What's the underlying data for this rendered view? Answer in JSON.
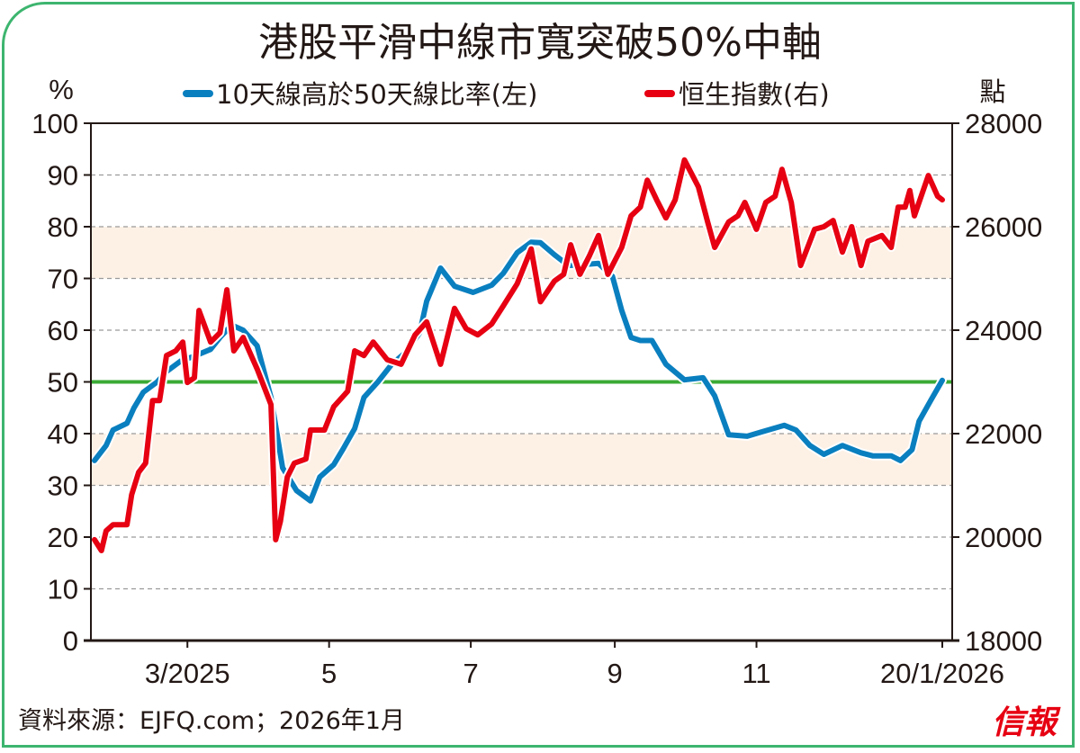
{
  "chart_data": {
    "type": "line",
    "title": "港股平滑中線市寬突破50%中軸",
    "left_axis": {
      "label": "%",
      "ylim": [
        0,
        100
      ],
      "ticks": [
        0,
        10,
        20,
        30,
        40,
        50,
        60,
        70,
        80,
        90,
        100
      ]
    },
    "right_axis": {
      "label": "點",
      "ylim": [
        18000,
        28000
      ],
      "ticks": [
        18000,
        20000,
        22000,
        24000,
        26000,
        28000
      ]
    },
    "x_axis": {
      "xlim": [
        "2025-01-20",
        "2026-01-20"
      ],
      "ticks": [
        {
          "date": "2025-03-01",
          "label": "3/2025"
        },
        {
          "date": "2025-05-01",
          "label": "5"
        },
        {
          "date": "2025-07-01",
          "label": "7"
        },
        {
          "date": "2025-09-01",
          "label": "9"
        },
        {
          "date": "2025-11-01",
          "label": "11"
        },
        {
          "date": "2026-01-20",
          "label": "20/1/2026"
        }
      ]
    },
    "grid": true,
    "bands": [
      {
        "from": 30,
        "to": 40,
        "color": "#fdf1e6"
      },
      {
        "from": 70,
        "to": 80,
        "color": "#fdf1e6"
      }
    ],
    "reference_line": {
      "value": 50,
      "color": "#3aaa35"
    },
    "legend_placement": "top",
    "series": [
      {
        "name": "10天線高於50天線比率(左)",
        "axis": "left",
        "color": "#0a7fbf",
        "points": [
          [
            "2025-01-20",
            34.8
          ],
          [
            "2025-01-25",
            37.7
          ],
          [
            "2025-01-28",
            40.7
          ],
          [
            "2025-02-03",
            42
          ],
          [
            "2025-02-06",
            45
          ],
          [
            "2025-02-10",
            48
          ],
          [
            "2025-02-16",
            50
          ],
          [
            "2025-02-20",
            52
          ],
          [
            "2025-02-26",
            54
          ],
          [
            "2025-03-04",
            55
          ],
          [
            "2025-03-11",
            56.3
          ],
          [
            "2025-03-15",
            58.6
          ],
          [
            "2025-03-20",
            61
          ],
          [
            "2025-03-25",
            60
          ],
          [
            "2025-03-31",
            57
          ],
          [
            "2025-04-06",
            47
          ],
          [
            "2025-04-11",
            33.4
          ],
          [
            "2025-04-17",
            29
          ],
          [
            "2025-04-23",
            27
          ],
          [
            "2025-04-27",
            31.6
          ],
          [
            "2025-05-03",
            34
          ],
          [
            "2025-05-07",
            37
          ],
          [
            "2025-05-12",
            41
          ],
          [
            "2025-05-16",
            47
          ],
          [
            "2025-05-22",
            50
          ],
          [
            "2025-05-28",
            53.4
          ],
          [
            "2025-06-03",
            55.7
          ],
          [
            "2025-06-09",
            59.5
          ],
          [
            "2025-06-12",
            65.6
          ],
          [
            "2025-06-18",
            72
          ],
          [
            "2025-06-24",
            68.5
          ],
          [
            "2025-07-02",
            67.3
          ],
          [
            "2025-07-10",
            68.7
          ],
          [
            "2025-07-15",
            71
          ],
          [
            "2025-07-21",
            75
          ],
          [
            "2025-07-27",
            77
          ],
          [
            "2025-07-31",
            76.9
          ],
          [
            "2025-08-06",
            74.6
          ],
          [
            "2025-08-12",
            72.5
          ],
          [
            "2025-08-19",
            72.7
          ],
          [
            "2025-08-25",
            72.9
          ],
          [
            "2025-08-31",
            70.4
          ],
          [
            "2025-09-04",
            63.8
          ],
          [
            "2025-09-08",
            58.6
          ],
          [
            "2025-09-12",
            58
          ],
          [
            "2025-09-17",
            58
          ],
          [
            "2025-09-23",
            53.4
          ],
          [
            "2025-10-01",
            50.4
          ],
          [
            "2025-10-09",
            50.8
          ],
          [
            "2025-10-14",
            47.3
          ],
          [
            "2025-10-20",
            39.8
          ],
          [
            "2025-10-28",
            39.5
          ],
          [
            "2025-11-03",
            40.3
          ],
          [
            "2025-11-13",
            41.6
          ],
          [
            "2025-11-18",
            40.7
          ],
          [
            "2025-11-24",
            37.7
          ],
          [
            "2025-11-30",
            36
          ],
          [
            "2025-12-08",
            37.7
          ],
          [
            "2025-12-16",
            36.3
          ],
          [
            "2025-12-21",
            35.7
          ],
          [
            "2025-12-29",
            35.7
          ],
          [
            "2026-01-02",
            34.8
          ],
          [
            "2026-01-07",
            36.9
          ],
          [
            "2026-01-10",
            42.4
          ],
          [
            "2026-01-15",
            46.4
          ],
          [
            "2026-01-20",
            50.3
          ]
        ]
      },
      {
        "name": "恒生指數(右)",
        "axis": "right",
        "color": "#e60012",
        "points": [
          [
            "2025-01-20",
            19950
          ],
          [
            "2025-01-23",
            19740
          ],
          [
            "2025-01-25",
            20120
          ],
          [
            "2025-01-28",
            20240
          ],
          [
            "2025-02-03",
            20240
          ],
          [
            "2025-02-05",
            20820
          ],
          [
            "2025-02-08",
            21250
          ],
          [
            "2025-02-11",
            21430
          ],
          [
            "2025-02-14",
            22640
          ],
          [
            "2025-02-17",
            22640
          ],
          [
            "2025-02-20",
            23510
          ],
          [
            "2025-02-24",
            23600
          ],
          [
            "2025-02-27",
            23770
          ],
          [
            "2025-03-01",
            22990
          ],
          [
            "2025-03-04",
            23080
          ],
          [
            "2025-03-06",
            24380
          ],
          [
            "2025-03-11",
            23770
          ],
          [
            "2025-03-15",
            23950
          ],
          [
            "2025-03-18",
            24780
          ],
          [
            "2025-03-21",
            23600
          ],
          [
            "2025-03-25",
            23860
          ],
          [
            "2025-03-31",
            23250
          ],
          [
            "2025-04-06",
            22560
          ],
          [
            "2025-04-08",
            19950
          ],
          [
            "2025-04-10",
            20300
          ],
          [
            "2025-04-13",
            21160
          ],
          [
            "2025-04-16",
            21430
          ],
          [
            "2025-04-21",
            21510
          ],
          [
            "2025-04-23",
            22070
          ],
          [
            "2025-04-29",
            22070
          ],
          [
            "2025-05-03",
            22520
          ],
          [
            "2025-05-09",
            22820
          ],
          [
            "2025-05-12",
            23600
          ],
          [
            "2025-05-16",
            23510
          ],
          [
            "2025-05-20",
            23770
          ],
          [
            "2025-05-26",
            23430
          ],
          [
            "2025-06-01",
            23340
          ],
          [
            "2025-06-07",
            23910
          ],
          [
            "2025-06-12",
            24160
          ],
          [
            "2025-06-18",
            23340
          ],
          [
            "2025-06-24",
            24420
          ],
          [
            "2025-06-29",
            24030
          ],
          [
            "2025-07-04",
            23910
          ],
          [
            "2025-07-10",
            24120
          ],
          [
            "2025-07-15",
            24470
          ],
          [
            "2025-07-21",
            24900
          ],
          [
            "2025-07-27",
            25570
          ],
          [
            "2025-07-31",
            24550
          ],
          [
            "2025-08-06",
            24950
          ],
          [
            "2025-08-10",
            25080
          ],
          [
            "2025-08-13",
            25650
          ],
          [
            "2025-08-17",
            25080
          ],
          [
            "2025-08-21",
            25430
          ],
          [
            "2025-08-25",
            25830
          ],
          [
            "2025-08-29",
            25080
          ],
          [
            "2025-09-04",
            25600
          ],
          [
            "2025-09-08",
            26210
          ],
          [
            "2025-09-12",
            26380
          ],
          [
            "2025-09-15",
            26900
          ],
          [
            "2025-09-19",
            26520
          ],
          [
            "2025-09-23",
            26170
          ],
          [
            "2025-09-27",
            26520
          ],
          [
            "2025-10-01",
            27290
          ],
          [
            "2025-10-07",
            26770
          ],
          [
            "2025-10-11",
            26090
          ],
          [
            "2025-10-14",
            25600
          ],
          [
            "2025-10-20",
            26090
          ],
          [
            "2025-10-24",
            26210
          ],
          [
            "2025-10-27",
            26470
          ],
          [
            "2025-11-01",
            25950
          ],
          [
            "2025-11-05",
            26470
          ],
          [
            "2025-11-09",
            26590
          ],
          [
            "2025-11-12",
            27110
          ],
          [
            "2025-11-16",
            26470
          ],
          [
            "2025-11-20",
            25250
          ],
          [
            "2025-11-26",
            25950
          ],
          [
            "2025-11-30",
            26000
          ],
          [
            "2025-12-04",
            26120
          ],
          [
            "2025-12-08",
            25510
          ],
          [
            "2025-12-12",
            26000
          ],
          [
            "2025-12-16",
            25250
          ],
          [
            "2025-12-19",
            25720
          ],
          [
            "2025-12-25",
            25830
          ],
          [
            "2025-12-29",
            25600
          ],
          [
            "2026-01-01",
            26380
          ],
          [
            "2026-01-04",
            26380
          ],
          [
            "2026-01-06",
            26700
          ],
          [
            "2026-01-08",
            26210
          ],
          [
            "2026-01-14",
            26990
          ],
          [
            "2026-01-18",
            26590
          ],
          [
            "2026-01-20",
            26520
          ]
        ]
      }
    ]
  },
  "footer": {
    "source": "資料來源：EJFQ.com；2026年1月",
    "logo": "信報"
  },
  "colors": {
    "frame": "#3db56f",
    "axis": "#231815"
  }
}
